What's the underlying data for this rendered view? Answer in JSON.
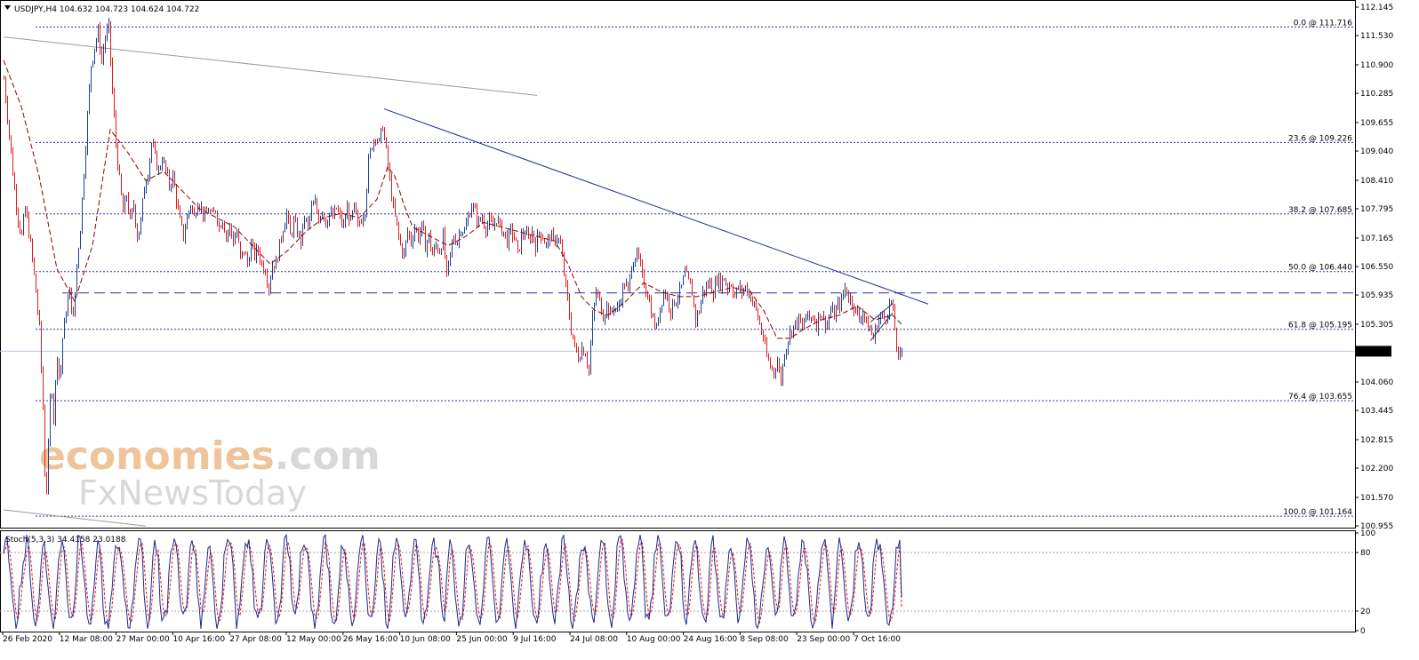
{
  "header": {
    "symbol": "USDJPY,H4",
    "ohlc": "104.632 104.723 104.624 104.722"
  },
  "watermark": {
    "brand": "economies",
    "brand_suffix": ".com",
    "sub": "FxNewsToday"
  },
  "colors": {
    "up_candle": "#1f3f8f",
    "down_candle": "#e31b1b",
    "fib_line": "#2e3192",
    "trendline": "#1f2f8f",
    "ma_line": "#8b0000",
    "stoch_main": "#1c2a8c",
    "stoch_signal": "#d42020"
  },
  "chart_data": [
    {
      "type": "candlestick",
      "title": "USDJPY,H4",
      "ylim": [
        100.955,
        112.145
      ],
      "y_ticks": [
        "112.145",
        "111.530",
        "110.900",
        "110.285",
        "109.655",
        "109.040",
        "108.410",
        "107.795",
        "107.165",
        "106.550",
        "105.935",
        "105.305",
        "104.722",
        "104.060",
        "103.445",
        "102.815",
        "102.200",
        "101.570",
        "100.955"
      ],
      "x_ticks": [
        "26 Feb 2020",
        "12 Mar 08:00",
        "27 Mar 00:00",
        "10 Apr 16:00",
        "27 Apr 08:00",
        "12 May 00:00",
        "26 May 16:00",
        "10 Jun 08:00",
        "25 Jun 00:00",
        "9 Jul 16:00",
        "24 Jul 08:00",
        "10 Aug 00:00",
        "24 Aug 16:00",
        "8 Sep 08:00",
        "23 Sep 00:00",
        "7 Oct 16:00"
      ],
      "current_price": 104.722,
      "fibonacci": [
        {
          "label": "0.0 @ 111.716",
          "value": 111.716
        },
        {
          "label": "23.6 @ 109.226",
          "value": 109.226
        },
        {
          "label": "38.2 @ 107.685",
          "value": 107.685
        },
        {
          "label": "50.0 @ 106.440",
          "value": 106.44
        },
        {
          "label": "61.8 @ 105.195",
          "value": 105.195
        },
        {
          "label": "76.4 @ 103.655",
          "value": 103.655
        },
        {
          "label": "100.0 @ 101.164",
          "value": 101.164
        }
      ],
      "horizontal_level": 105.98,
      "close_path": [
        [
          0,
          110.6
        ],
        [
          4,
          109.8
        ],
        [
          8,
          109.0
        ],
        [
          12,
          108.2
        ],
        [
          16,
          107.6
        ],
        [
          20,
          107.2
        ],
        [
          24,
          107.8
        ],
        [
          28,
          107.3
        ],
        [
          32,
          106.7
        ],
        [
          36,
          106.0
        ],
        [
          40,
          105.2
        ],
        [
          44,
          103.5
        ],
        [
          47,
          101.4
        ],
        [
          50,
          102.6
        ],
        [
          53,
          104.2
        ],
        [
          56,
          103.3
        ],
        [
          60,
          104.7
        ],
        [
          63,
          104.0
        ],
        [
          66,
          105.0
        ],
        [
          70,
          105.6
        ],
        [
          74,
          106.0
        ],
        [
          78,
          105.4
        ],
        [
          82,
          106.6
        ],
        [
          86,
          107.4
        ],
        [
          90,
          108.6
        ],
        [
          94,
          109.8
        ],
        [
          98,
          110.9
        ],
        [
          102,
          111.3
        ],
        [
          106,
          111.6
        ],
        [
          110,
          111.0
        ],
        [
          114,
          111.5
        ],
        [
          118,
          111.7
        ],
        [
          122,
          110.3
        ],
        [
          126,
          109.2
        ],
        [
          130,
          108.4
        ],
        [
          134,
          107.7
        ],
        [
          138,
          108.1
        ],
        [
          142,
          107.5
        ],
        [
          146,
          107.9
        ],
        [
          150,
          107.2
        ],
        [
          154,
          107.5
        ],
        [
          158,
          108.3
        ],
        [
          162,
          108.6
        ],
        [
          166,
          109.2
        ],
        [
          170,
          108.9
        ],
        [
          174,
          108.6
        ],
        [
          178,
          108.9
        ],
        [
          182,
          108.6
        ],
        [
          186,
          108.3
        ],
        [
          190,
          108.5
        ],
        [
          194,
          108.0
        ],
        [
          198,
          107.5
        ],
        [
          202,
          107.2
        ],
        [
          206,
          107.6
        ],
        [
          210,
          107.9
        ],
        [
          214,
          107.6
        ],
        [
          218,
          108.0
        ],
        [
          222,
          107.8
        ],
        [
          226,
          107.6
        ],
        [
          230,
          107.8
        ],
        [
          234,
          107.6
        ],
        [
          238,
          107.8
        ],
        [
          242,
          107.4
        ],
        [
          246,
          107.6
        ],
        [
          250,
          107.2
        ],
        [
          254,
          107.4
        ],
        [
          258,
          107.1
        ],
        [
          262,
          107.3
        ],
        [
          266,
          106.7
        ],
        [
          270,
          106.9
        ],
        [
          274,
          106.6
        ],
        [
          278,
          107.0
        ],
        [
          282,
          106.8
        ],
        [
          286,
          106.9
        ],
        [
          290,
          106.6
        ],
        [
          294,
          106.5
        ],
        [
          298,
          106.1
        ],
        [
          302,
          106.6
        ],
        [
          306,
          106.6
        ],
        [
          310,
          107.0
        ],
        [
          314,
          107.4
        ],
        [
          318,
          107.7
        ],
        [
          322,
          107.2
        ],
        [
          326,
          107.5
        ],
        [
          330,
          107.3
        ],
        [
          334,
          107.1
        ],
        [
          338,
          107.6
        ],
        [
          342,
          107.4
        ],
        [
          346,
          107.8
        ],
        [
          350,
          107.9
        ],
        [
          354,
          107.6
        ],
        [
          358,
          107.8
        ],
        [
          362,
          107.5
        ],
        [
          366,
          107.7
        ],
        [
          370,
          107.6
        ],
        [
          374,
          107.8
        ],
        [
          378,
          107.6
        ],
        [
          382,
          107.4
        ],
        [
          386,
          107.8
        ],
        [
          390,
          107.5
        ],
        [
          394,
          107.8
        ],
        [
          398,
          107.4
        ],
        [
          402,
          107.6
        ],
        [
          406,
          107.8
        ],
        [
          410,
          108.8
        ],
        [
          414,
          109.2
        ],
        [
          418,
          109.4
        ],
        [
          422,
          109.2
        ],
        [
          426,
          109.6
        ],
        [
          430,
          109.0
        ],
        [
          434,
          108.4
        ],
        [
          438,
          107.8
        ],
        [
          442,
          107.4
        ],
        [
          446,
          107.0
        ],
        [
          450,
          106.8
        ],
        [
          454,
          107.3
        ],
        [
          458,
          107.1
        ],
        [
          462,
          107.4
        ],
        [
          466,
          107.2
        ],
        [
          470,
          107.4
        ],
        [
          474,
          107.0
        ],
        [
          478,
          107.2
        ],
        [
          482,
          106.8
        ],
        [
          486,
          107.0
        ],
        [
          490,
          106.9
        ],
        [
          494,
          107.2
        ],
        [
          498,
          106.3
        ],
        [
          502,
          106.8
        ],
        [
          506,
          107.2
        ],
        [
          510,
          107.1
        ],
        [
          514,
          107.4
        ],
        [
          518,
          107.3
        ],
        [
          522,
          107.6
        ],
        [
          526,
          107.9
        ],
        [
          530,
          107.7
        ],
        [
          534,
          107.5
        ],
        [
          538,
          107.6
        ],
        [
          542,
          107.4
        ],
        [
          546,
          107.5
        ],
        [
          550,
          107.4
        ],
        [
          554,
          107.6
        ],
        [
          558,
          107.4
        ],
        [
          562,
          107.3
        ],
        [
          566,
          107.1
        ],
        [
          570,
          107.3
        ],
        [
          574,
          107.2
        ],
        [
          578,
          106.8
        ],
        [
          582,
          107.2
        ],
        [
          586,
          107.3
        ],
        [
          590,
          107.1
        ],
        [
          594,
          107.3
        ],
        [
          598,
          107.0
        ],
        [
          602,
          107.3
        ],
        [
          606,
          107.2
        ],
        [
          610,
          107.0
        ],
        [
          614,
          107.2
        ],
        [
          618,
          107.1
        ],
        [
          622,
          107.2
        ],
        [
          626,
          107.0
        ],
        [
          630,
          106.4
        ],
        [
          634,
          105.8
        ],
        [
          638,
          105.2
        ],
        [
          642,
          104.8
        ],
        [
          646,
          104.6
        ],
        [
          650,
          104.8
        ],
        [
          654,
          104.7
        ],
        [
          658,
          104.3
        ],
        [
          662,
          105.4
        ],
        [
          666,
          106.0
        ],
        [
          670,
          105.8
        ],
        [
          674,
          105.5
        ],
        [
          678,
          105.7
        ],
        [
          682,
          105.5
        ],
        [
          686,
          105.7
        ],
        [
          690,
          105.6
        ],
        [
          694,
          105.9
        ],
        [
          698,
          106.2
        ],
        [
          702,
          106.0
        ],
        [
          706,
          106.6
        ],
        [
          710,
          106.8
        ],
        [
          714,
          106.7
        ],
        [
          718,
          106.3
        ],
        [
          722,
          106.1
        ],
        [
          726,
          105.8
        ],
        [
          730,
          105.4
        ],
        [
          734,
          105.2
        ],
        [
          738,
          105.7
        ],
        [
          742,
          106.0
        ],
        [
          746,
          105.9
        ],
        [
          750,
          105.6
        ],
        [
          754,
          105.8
        ],
        [
          758,
          105.9
        ],
        [
          762,
          106.1
        ],
        [
          766,
          106.4
        ],
        [
          770,
          106.2
        ],
        [
          774,
          106.0
        ],
        [
          778,
          105.4
        ],
        [
          782,
          105.6
        ],
        [
          786,
          106.0
        ],
        [
          790,
          106.1
        ],
        [
          794,
          106.2
        ],
        [
          798,
          106.0
        ],
        [
          802,
          106.3
        ],
        [
          806,
          106.2
        ],
        [
          810,
          106.3
        ],
        [
          814,
          106.1
        ],
        [
          818,
          106.2
        ],
        [
          822,
          105.9
        ],
        [
          826,
          106.1
        ],
        [
          830,
          106.0
        ],
        [
          834,
          106.1
        ],
        [
          838,
          106.0
        ],
        [
          842,
          105.8
        ],
        [
          846,
          105.6
        ],
        [
          850,
          105.3
        ],
        [
          854,
          105.0
        ],
        [
          858,
          104.6
        ],
        [
          862,
          104.4
        ],
        [
          866,
          104.3
        ],
        [
          870,
          104.5
        ],
        [
          874,
          104.1
        ],
        [
          878,
          104.7
        ],
        [
          882,
          105.0
        ],
        [
          886,
          105.2
        ],
        [
          890,
          105.3
        ],
        [
          894,
          105.4
        ],
        [
          898,
          105.2
        ],
        [
          902,
          105.5
        ],
        [
          906,
          105.4
        ],
        [
          910,
          105.5
        ],
        [
          914,
          105.3
        ],
        [
          918,
          105.6
        ],
        [
          922,
          105.4
        ],
        [
          926,
          105.3
        ],
        [
          930,
          105.6
        ],
        [
          934,
          105.5
        ],
        [
          938,
          105.7
        ],
        [
          942,
          105.8
        ],
        [
          946,
          106.1
        ],
        [
          950,
          105.9
        ],
        [
          954,
          105.8
        ],
        [
          958,
          105.6
        ],
        [
          962,
          105.4
        ],
        [
          966,
          105.6
        ],
        [
          970,
          105.3
        ],
        [
          974,
          105.2
        ],
        [
          978,
          105.0
        ],
        [
          982,
          105.3
        ],
        [
          986,
          105.5
        ],
        [
          990,
          105.4
        ],
        [
          994,
          105.6
        ],
        [
          998,
          105.8
        ],
        [
          1002,
          105.2
        ],
        [
          1006,
          104.5
        ],
        [
          1010,
          104.722
        ]
      ],
      "ma_path": [
        [
          0,
          111.0
        ],
        [
          20,
          110.0
        ],
        [
          40,
          108.5
        ],
        [
          60,
          106.5
        ],
        [
          80,
          105.8
        ],
        [
          100,
          107.0
        ],
        [
          120,
          109.5
        ],
        [
          140,
          109.0
        ],
        [
          160,
          108.4
        ],
        [
          180,
          108.6
        ],
        [
          200,
          108.2
        ],
        [
          220,
          107.8
        ],
        [
          240,
          107.6
        ],
        [
          260,
          107.4
        ],
        [
          280,
          107.0
        ],
        [
          300,
          106.6
        ],
        [
          320,
          106.9
        ],
        [
          340,
          107.3
        ],
        [
          360,
          107.6
        ],
        [
          380,
          107.7
        ],
        [
          400,
          107.6
        ],
        [
          420,
          108.0
        ],
        [
          432,
          108.7
        ],
        [
          440,
          108.5
        ],
        [
          450,
          107.9
        ],
        [
          460,
          107.4
        ],
        [
          480,
          107.2
        ],
        [
          500,
          107.0
        ],
        [
          520,
          107.2
        ],
        [
          540,
          107.5
        ],
        [
          560,
          107.4
        ],
        [
          580,
          107.3
        ],
        [
          600,
          107.2
        ],
        [
          620,
          107.1
        ],
        [
          635,
          106.6
        ],
        [
          650,
          105.9
        ],
        [
          665,
          105.6
        ],
        [
          680,
          105.5
        ],
        [
          700,
          105.8
        ],
        [
          720,
          106.2
        ],
        [
          740,
          106.0
        ],
        [
          760,
          105.9
        ],
        [
          780,
          105.9
        ],
        [
          800,
          106.0
        ],
        [
          820,
          106.1
        ],
        [
          840,
          106.0
        ],
        [
          855,
          105.6
        ],
        [
          870,
          105.0
        ],
        [
          885,
          105.0
        ],
        [
          900,
          105.2
        ],
        [
          920,
          105.4
        ],
        [
          940,
          105.5
        ],
        [
          960,
          105.7
        ],
        [
          980,
          105.4
        ],
        [
          1000,
          105.5
        ],
        [
          1010,
          105.3
        ]
      ],
      "trendlines": [
        {
          "from": [
            428,
            109.95
          ],
          "to": [
            1040,
            105.74
          ]
        },
        {
          "from": [
            0,
            111.5
          ],
          "to": [
            600,
            110.24
          ]
        },
        {
          "from": [
            0,
            101.3
          ],
          "to": [
            160,
            100.95
          ]
        }
      ],
      "channel": [
        {
          "from": [
            975,
            104.95
          ],
          "to": [
            1000,
            105.55
          ]
        },
        {
          "from": [
            975,
            105.35
          ],
          "to": [
            1000,
            105.75
          ]
        }
      ]
    },
    {
      "type": "line",
      "title": "Stoch(5,3,3) 34.4158 23.0188",
      "ylim": [
        0,
        100
      ],
      "y_ticks": [
        "100",
        "80",
        "20",
        "0"
      ],
      "levels": [
        80,
        20
      ],
      "main_value": 34.4158,
      "signal_value": 23.0188
    }
  ]
}
